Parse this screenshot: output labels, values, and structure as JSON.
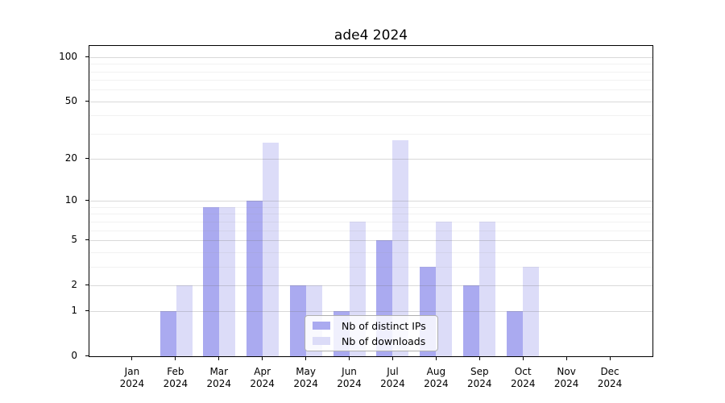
{
  "chart_data": {
    "type": "bar",
    "title": "ade4 2024",
    "categories": [
      "Jan",
      "Feb",
      "Mar",
      "Apr",
      "May",
      "Jun",
      "Jul",
      "Aug",
      "Sep",
      "Oct",
      "Nov",
      "Dec"
    ],
    "x_year": "2024",
    "series": [
      {
        "name": "Nb of distinct IPs",
        "color": "#aaaaf0",
        "values": [
          0,
          1,
          9,
          10,
          2,
          1,
          5,
          3,
          2,
          1,
          0,
          0
        ]
      },
      {
        "name": "Nb of downloads",
        "color": "#dcdcf8",
        "values": [
          0,
          2,
          9,
          26,
          2,
          7,
          27,
          7,
          7,
          3,
          0,
          0
        ]
      }
    ],
    "yscale": "log1p",
    "ylim": [
      0,
      119
    ],
    "yticks": [
      0,
      1,
      2,
      5,
      10,
      20,
      50,
      100
    ],
    "yticks_minor": [
      3,
      4,
      6,
      7,
      8,
      9,
      30,
      40,
      60,
      70,
      80,
      90
    ],
    "grid": true,
    "legend_position": "inside lower center-right"
  },
  "colors": {
    "bar_distinct_ips": "#aaaaf0",
    "bar_downloads": "#dcdcf8",
    "axis": "#000000",
    "text": "#000000"
  }
}
